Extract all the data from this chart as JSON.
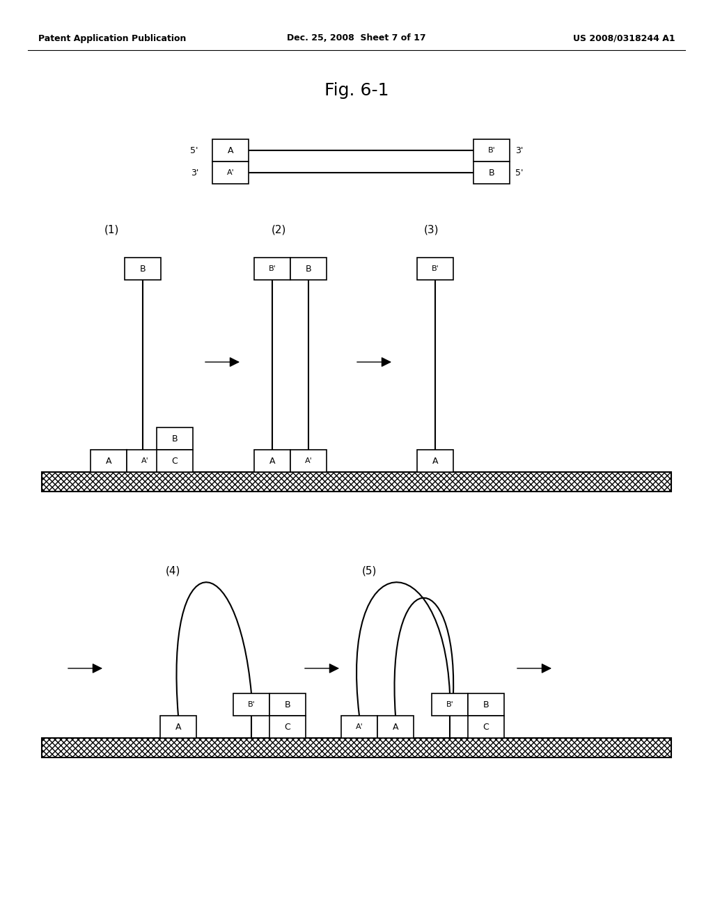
{
  "title": "Fig. 6-1",
  "header_left": "Patent Application Publication",
  "header_center": "Dec. 25, 2008  Sheet 7 of 17",
  "header_right": "US 2008/0318244 A1",
  "bg_color": "#ffffff"
}
